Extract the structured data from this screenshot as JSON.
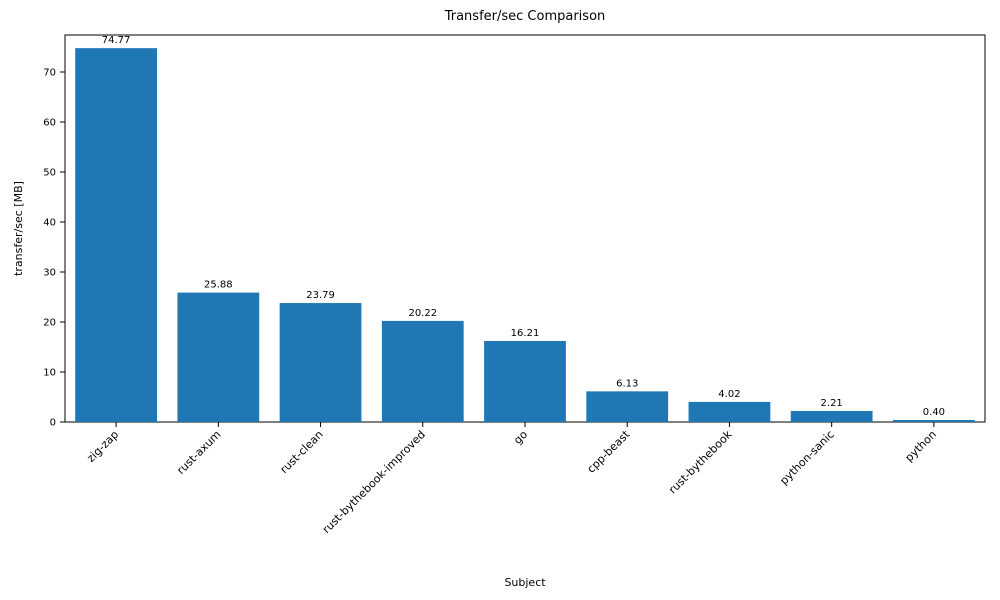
{
  "chart_data": {
    "type": "bar",
    "title": "Transfer/sec Comparison",
    "xlabel": "Subject",
    "ylabel": "transfer/sec [MB]",
    "categories": [
      "zig-zap",
      "rust-axum",
      "rust-clean",
      "rust-bythebook-improved",
      "go",
      "cpp-beast",
      "rust-bythebook",
      "python-sanic",
      "python"
    ],
    "values": [
      74.77,
      25.88,
      23.79,
      20.22,
      16.21,
      6.13,
      4.02,
      2.21,
      0.4
    ],
    "value_labels": [
      "74.77",
      "25.88",
      "23.79",
      "20.22",
      "16.21",
      "6.13",
      "4.02",
      "2.21",
      "0.40"
    ],
    "ylim": [
      0,
      77.4
    ],
    "yticks": [
      0,
      10,
      20,
      30,
      40,
      50,
      60,
      70
    ],
    "bar_color": "#1f77b4",
    "axis_color": "#000000",
    "legend": "none",
    "grid": false,
    "x_tick_rotation_deg": 45
  }
}
